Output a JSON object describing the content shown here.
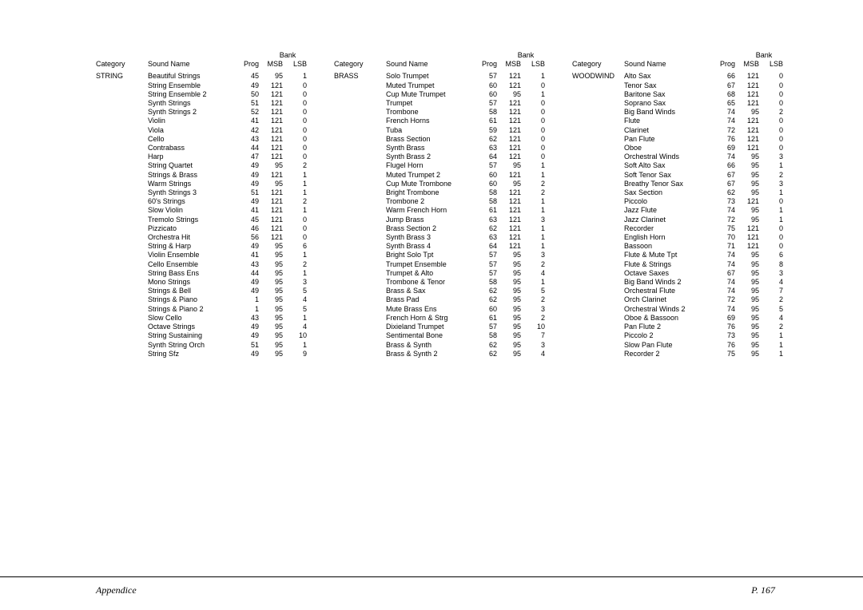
{
  "footer": {
    "left": "Appendice",
    "right": "P. 167"
  },
  "headers": {
    "category": "Category",
    "sound": "Sound Name",
    "prog": "Prog",
    "msb": "MSB",
    "lsb": "LSB",
    "bank": "Bank"
  },
  "columns": [
    {
      "category": "STRING",
      "rows": [
        [
          "Beautiful Strings",
          45,
          95,
          1
        ],
        [
          "String Ensemble",
          49,
          121,
          0
        ],
        [
          "String Ensemble 2",
          50,
          121,
          0
        ],
        [
          "Synth Strings",
          51,
          121,
          0
        ],
        [
          "Synth Strings 2",
          52,
          121,
          0
        ],
        [
          "Violin",
          41,
          121,
          0
        ],
        [
          "Viola",
          42,
          121,
          0
        ],
        [
          "Cello",
          43,
          121,
          0
        ],
        [
          "Contrabass",
          44,
          121,
          0
        ],
        [
          "Harp",
          47,
          121,
          0
        ],
        [
          "String Quartet",
          49,
          95,
          2
        ],
        [
          "Strings & Brass",
          49,
          121,
          1
        ],
        [
          "Warm Strings",
          49,
          95,
          1
        ],
        [
          "Synth Strings 3",
          51,
          121,
          1
        ],
        [
          "60's Strings",
          49,
          121,
          2
        ],
        [
          "Slow Violin",
          41,
          121,
          1
        ],
        [
          "Tremolo Strings",
          45,
          121,
          0
        ],
        [
          "Pizzicato",
          46,
          121,
          0
        ],
        [
          "Orchestra Hit",
          56,
          121,
          0
        ],
        [
          "String & Harp",
          49,
          95,
          6
        ],
        [
          "Violin Ensemble",
          41,
          95,
          1
        ],
        [
          "Cello Ensemble",
          43,
          95,
          2
        ],
        [
          "String Bass Ens",
          44,
          95,
          1
        ],
        [
          "Mono Strings",
          49,
          95,
          3
        ],
        [
          "Strings & Bell",
          49,
          95,
          5
        ],
        [
          "Strings & Piano",
          1,
          95,
          4
        ],
        [
          "Strings & Piano 2",
          1,
          95,
          5
        ],
        [
          "Slow Cello",
          43,
          95,
          1
        ],
        [
          "Octave Strings",
          49,
          95,
          4
        ],
        [
          "String Sustaining",
          49,
          95,
          10
        ],
        [
          "Synth String Orch",
          51,
          95,
          1
        ],
        [
          "String Sfz",
          49,
          95,
          9
        ]
      ]
    },
    {
      "category": "BRASS",
      "rows": [
        [
          "Solo Trumpet",
          57,
          121,
          1
        ],
        [
          "Muted Trumpet",
          60,
          121,
          0
        ],
        [
          "Cup Mute Trumpet",
          60,
          95,
          1
        ],
        [
          "Trumpet",
          57,
          121,
          0
        ],
        [
          "Trombone",
          58,
          121,
          0
        ],
        [
          "French Horns",
          61,
          121,
          0
        ],
        [
          "Tuba",
          59,
          121,
          0
        ],
        [
          "Brass Section",
          62,
          121,
          0
        ],
        [
          "Synth Brass",
          63,
          121,
          0
        ],
        [
          "Synth Brass 2",
          64,
          121,
          0
        ],
        [
          "Flugel Horn",
          57,
          95,
          1
        ],
        [
          "Muted Trumpet 2",
          60,
          121,
          1
        ],
        [
          "Cup Mute Trombone",
          60,
          95,
          2
        ],
        [
          "Bright Trombone",
          58,
          121,
          2
        ],
        [
          "Trombone 2",
          58,
          121,
          1
        ],
        [
          "Warm French Horn",
          61,
          121,
          1
        ],
        [
          "Jump Brass",
          63,
          121,
          3
        ],
        [
          "Brass Section 2",
          62,
          121,
          1
        ],
        [
          "Synth Brass 3",
          63,
          121,
          1
        ],
        [
          "Synth Brass 4",
          64,
          121,
          1
        ],
        [
          "Bright Solo Tpt",
          57,
          95,
          3
        ],
        [
          "Trumpet Ensemble",
          57,
          95,
          2
        ],
        [
          "Trumpet & Alto",
          57,
          95,
          4
        ],
        [
          "Trombone & Tenor",
          58,
          95,
          1
        ],
        [
          "Brass & Sax",
          62,
          95,
          5
        ],
        [
          "Brass Pad",
          62,
          95,
          2
        ],
        [
          "Mute Brass Ens",
          60,
          95,
          3
        ],
        [
          "French Horn & Strg",
          61,
          95,
          2
        ],
        [
          "Dixieland Trumpet",
          57,
          95,
          10
        ],
        [
          "Sentimental Bone",
          58,
          95,
          7
        ],
        [
          "Brass & Synth",
          62,
          95,
          3
        ],
        [
          "Brass & Synth 2",
          62,
          95,
          4
        ]
      ]
    },
    {
      "category": "WOODWIND",
      "rows": [
        [
          "Alto Sax",
          66,
          121,
          0
        ],
        [
          "Tenor Sax",
          67,
          121,
          0
        ],
        [
          "Baritone Sax",
          68,
          121,
          0
        ],
        [
          "Soprano Sax",
          65,
          121,
          0
        ],
        [
          "Big Band Winds",
          74,
          95,
          2
        ],
        [
          "Flute",
          74,
          121,
          0
        ],
        [
          "Clarinet",
          72,
          121,
          0
        ],
        [
          "Pan Flute",
          76,
          121,
          0
        ],
        [
          "Oboe",
          69,
          121,
          0
        ],
        [
          "Orchestral Winds",
          74,
          95,
          3
        ],
        [
          "Soft Alto Sax",
          66,
          95,
          1
        ],
        [
          "Soft Tenor Sax",
          67,
          95,
          2
        ],
        [
          "Breathy Tenor Sax",
          67,
          95,
          3
        ],
        [
          "Sax Section",
          62,
          95,
          1
        ],
        [
          "Piccolo",
          73,
          121,
          0
        ],
        [
          "Jazz Flute",
          74,
          95,
          1
        ],
        [
          "Jazz Clarinet",
          72,
          95,
          1
        ],
        [
          "Recorder",
          75,
          121,
          0
        ],
        [
          "English Horn",
          70,
          121,
          0
        ],
        [
          "Bassoon",
          71,
          121,
          0
        ],
        [
          "Flute & Mute Tpt",
          74,
          95,
          6
        ],
        [
          "Flute & Strings",
          74,
          95,
          8
        ],
        [
          "Octave Saxes",
          67,
          95,
          3
        ],
        [
          "Big Band Winds 2",
          74,
          95,
          4
        ],
        [
          "Orchestral Flute",
          74,
          95,
          7
        ],
        [
          "Orch Clarinet",
          72,
          95,
          2
        ],
        [
          "Orchestral Winds 2",
          74,
          95,
          5
        ],
        [
          "Oboe & Bassoon",
          69,
          95,
          4
        ],
        [
          "Pan Flute 2",
          76,
          95,
          2
        ],
        [
          "Piccolo 2",
          73,
          95,
          1
        ],
        [
          "Slow Pan Flute",
          76,
          95,
          1
        ],
        [
          "Recorder 2",
          75,
          95,
          1
        ]
      ]
    }
  ]
}
